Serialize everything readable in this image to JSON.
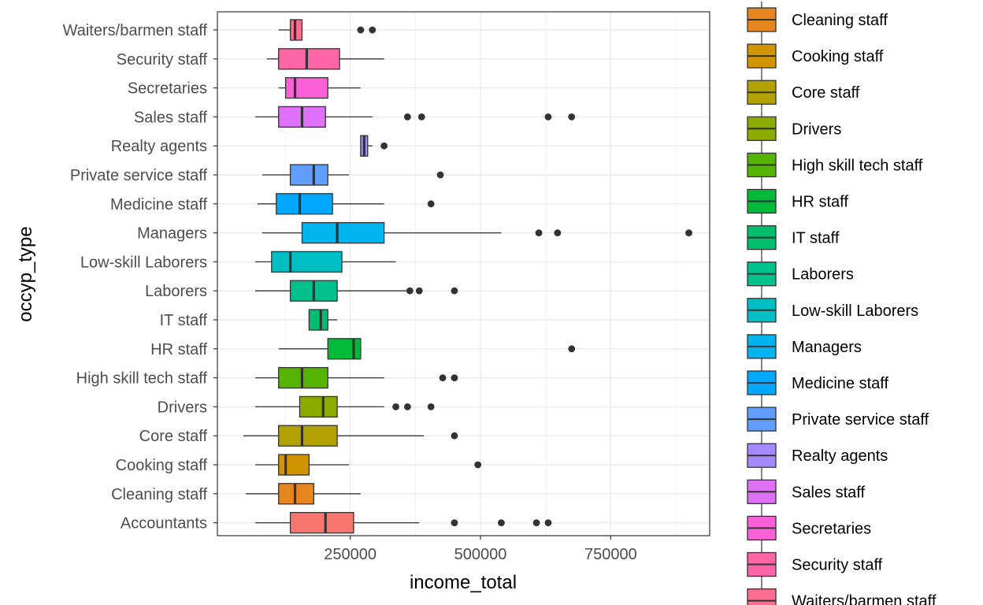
{
  "chart_data": {
    "type": "boxplot",
    "orientation": "horizontal",
    "xlabel": "income_total",
    "ylabel": "occyp_type",
    "xlim": [
      -5000,
      940000
    ],
    "x_ticks": [
      250000,
      500000,
      750000
    ],
    "x_tick_labels": [
      "250000",
      "500000",
      "750000"
    ],
    "grid": true,
    "legend_position": "right",
    "categories": [
      "Accountants",
      "Cleaning staff",
      "Cooking staff",
      "Core staff",
      "Drivers",
      "High skill tech staff",
      "HR staff",
      "IT staff",
      "Laborers",
      "Low-skill Laborers",
      "Managers",
      "Medicine staff",
      "Private service staff",
      "Realty agents",
      "Sales staff",
      "Secretaries",
      "Security staff",
      "Waiters/barmen staff"
    ],
    "legend_entries": [
      "Cleaning staff",
      "Cooking staff",
      "Core staff",
      "Drivers",
      "High skill tech staff",
      "HR staff",
      "IT staff",
      "Laborers",
      "Low-skill Laborers",
      "Managers",
      "Medicine staff",
      "Private service staff",
      "Realty agents",
      "Sales staff",
      "Secretaries",
      "Security staff",
      "Waiters/barmen staff"
    ],
    "series": [
      {
        "category": "Accountants",
        "color": "#F8766D",
        "min": 67500,
        "q1": 135000,
        "median": 202500,
        "q3": 256500,
        "max": 382500,
        "outliers": [
          450000,
          540000,
          607500,
          630000
        ]
      },
      {
        "category": "Cleaning staff",
        "color": "#E7851E",
        "min": 49500,
        "q1": 112500,
        "median": 144000,
        "q3": 180000,
        "max": 270000,
        "outliers": []
      },
      {
        "category": "Cooking staff",
        "color": "#D09400",
        "min": 67500,
        "q1": 112500,
        "median": 126000,
        "q3": 171000,
        "max": 247500,
        "outliers": [
          495000
        ]
      },
      {
        "category": "Core staff",
        "color": "#B2A100",
        "min": 45000,
        "q1": 112500,
        "median": 157500,
        "q3": 225000,
        "max": 391500,
        "outliers": [
          450000
        ]
      },
      {
        "category": "Drivers",
        "color": "#8BAB00",
        "min": 67500,
        "q1": 153000,
        "median": 198000,
        "q3": 225000,
        "max": 315000,
        "outliers": [
          337500,
          360000,
          405000
        ]
      },
      {
        "category": "High skill tech staff",
        "color": "#55B400",
        "min": 67500,
        "q1": 112500,
        "median": 157500,
        "q3": 207000,
        "max": 315000,
        "outliers": [
          427500,
          450000
        ]
      },
      {
        "category": "HR staff",
        "color": "#00BA38",
        "min": 112500,
        "q1": 207000,
        "median": 256500,
        "q3": 270000,
        "max": 270000,
        "outliers": [
          675000
        ]
      },
      {
        "category": "IT staff",
        "color": "#00BE6C",
        "min": 171000,
        "q1": 171000,
        "median": 193500,
        "q3": 207000,
        "max": 225000,
        "outliers": []
      },
      {
        "category": "Laborers",
        "color": "#00C08B",
        "min": 67500,
        "q1": 135000,
        "median": 180000,
        "q3": 225000,
        "max": 360000,
        "outliers": [
          364500,
          382500,
          450000
        ]
      },
      {
        "category": "Low-skill Laborers",
        "color": "#00BFC4",
        "min": 67500,
        "q1": 99000,
        "median": 135000,
        "q3": 234000,
        "max": 337500,
        "outliers": []
      },
      {
        "category": "Managers",
        "color": "#00B4F0",
        "min": 81000,
        "q1": 157500,
        "median": 225000,
        "q3": 315000,
        "max": 540000,
        "outliers": [
          612000,
          648000,
          900000
        ]
      },
      {
        "category": "Medicine staff",
        "color": "#00A9FF",
        "min": 72000,
        "q1": 108000,
        "median": 153000,
        "q3": 216000,
        "max": 315000,
        "outliers": [
          405000
        ]
      },
      {
        "category": "Private service staff",
        "color": "#619CFF",
        "min": 81000,
        "q1": 135000,
        "median": 180000,
        "q3": 207000,
        "max": 247500,
        "outliers": [
          423000
        ]
      },
      {
        "category": "Realty agents",
        "color": "#A58AFF",
        "min": 270000,
        "q1": 270000,
        "median": 276750,
        "q3": 283500,
        "max": 292500,
        "outliers": [
          315000
        ]
      },
      {
        "category": "Sales staff",
        "color": "#DF70F8",
        "min": 67500,
        "q1": 112500,
        "median": 157500,
        "q3": 202500,
        "max": 292500,
        "outliers": [
          360000,
          387000,
          630000,
          675000
        ]
      },
      {
        "category": "Secretaries",
        "color": "#FB61D7",
        "min": 112500,
        "q1": 126000,
        "median": 144000,
        "q3": 207000,
        "max": 270000,
        "outliers": []
      },
      {
        "category": "Security staff",
        "color": "#FF66A8",
        "min": 90000,
        "q1": 112500,
        "median": 166500,
        "q3": 229500,
        "max": 315000,
        "outliers": []
      },
      {
        "category": "Waiters/barmen staff",
        "color": "#FF6C91",
        "min": 112500,
        "q1": 135000,
        "median": 144000,
        "q3": 157500,
        "max": 157500,
        "outliers": [
          270000,
          292500
        ]
      }
    ]
  }
}
